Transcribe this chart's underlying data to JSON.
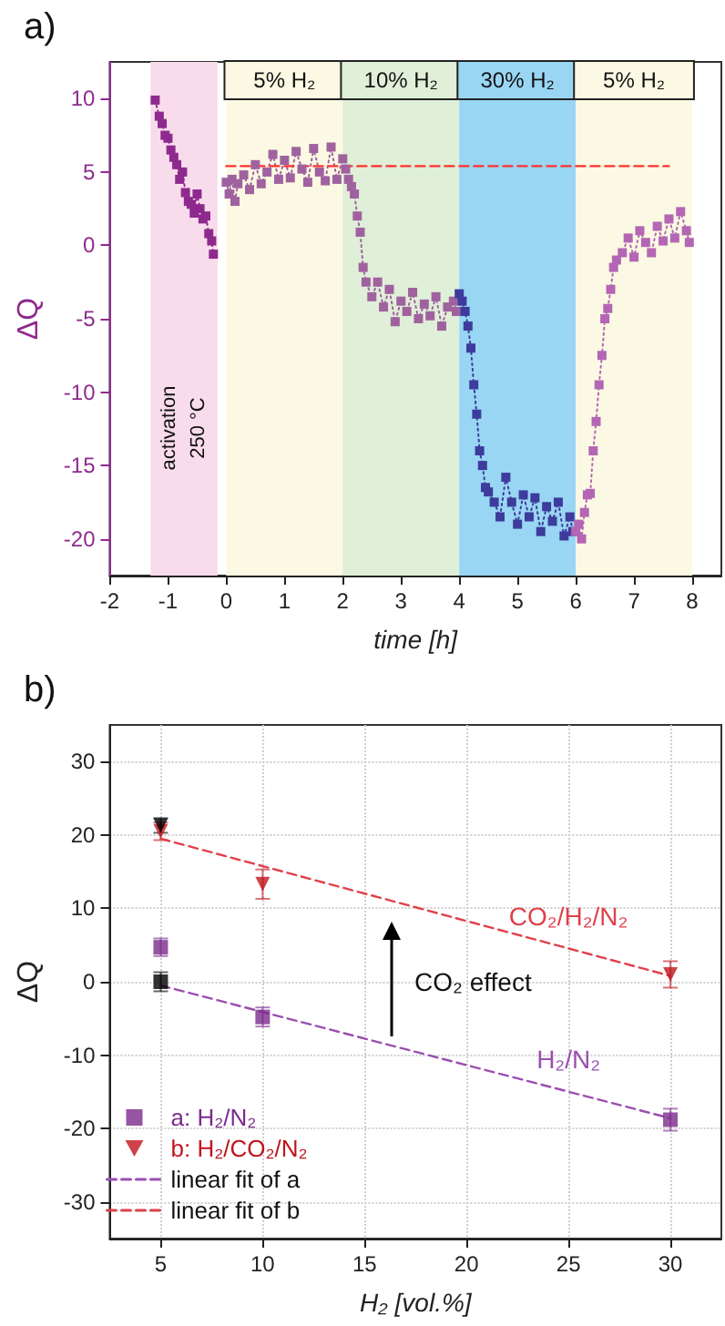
{
  "chart_data": [
    {
      "type": "line",
      "title": "a)",
      "xlabel": "time [h]",
      "ylabel": "ΔQ",
      "xlim": [
        -2,
        8.5
      ],
      "xticks": [
        -2,
        -1,
        0,
        1,
        2,
        3,
        4,
        5,
        6,
        7,
        8
      ],
      "ylim": [
        -22.5,
        12.5
      ],
      "yticks": [
        -20,
        -15,
        -10,
        -5,
        0,
        5,
        10
      ],
      "marker": "square",
      "line_style": "dotted",
      "grid": false,
      "legend": false,
      "bands": [
        {
          "axis": "x",
          "from": -1.3,
          "to": -0.15,
          "label": "activation\n250 °C",
          "color": "#f9dcec"
        },
        {
          "axis": "x",
          "from": 0,
          "to": 2,
          "label": "5% H₂",
          "color": "#fbf9e3"
        },
        {
          "axis": "x",
          "from": 2,
          "to": 4,
          "label": "10% H₂",
          "color": "#e0efd8"
        },
        {
          "axis": "x",
          "from": 4,
          "to": 6,
          "label": "30% H₂",
          "color": "#99d6f3"
        },
        {
          "axis": "x",
          "from": 6,
          "to": 8,
          "label": "5% H₂",
          "color": "#fbf9e3"
        }
      ],
      "series": [
        {
          "color": "#8e2a8e",
          "x": [
            -1.22,
            -1.15,
            -1.1,
            -1.05,
            -1.0,
            -0.95,
            -0.9,
            -0.85,
            -0.8,
            -0.75,
            -0.7,
            -0.65,
            -0.6,
            -0.55,
            -0.5,
            -0.45,
            -0.4,
            -0.35,
            -0.3,
            -0.25,
            -0.22
          ],
          "values": [
            9.9,
            8.8,
            8.3,
            7.5,
            7.3,
            6.5,
            6.0,
            5.5,
            4.5,
            5.0,
            3.6,
            3.0,
            2.8,
            2.2,
            3.5,
            2.5,
            1.8,
            2.0,
            0.8,
            0.3,
            -0.6
          ]
        },
        {
          "color": "#a0629f",
          "x": [
            0.0,
            0.05,
            0.1,
            0.15,
            0.2,
            0.3,
            0.4,
            0.5,
            0.6,
            0.7,
            0.8,
            0.9,
            1.0,
            1.1,
            1.2,
            1.3,
            1.4,
            1.5,
            1.6,
            1.7,
            1.8,
            1.9,
            2.0,
            2.05,
            2.1,
            2.15,
            2.2,
            2.25,
            2.3,
            2.35,
            2.4,
            2.5,
            2.6,
            2.7,
            2.8,
            2.9,
            3.0,
            3.1,
            3.2,
            3.3,
            3.4,
            3.5,
            3.6,
            3.7,
            3.8,
            3.9,
            3.95
          ],
          "values": [
            4.3,
            3.5,
            4.5,
            3.0,
            4.2,
            4.8,
            3.8,
            5.5,
            4.2,
            5.0,
            6.2,
            4.5,
            5.8,
            4.6,
            6.4,
            5.2,
            4.3,
            6.6,
            5.0,
            4.4,
            6.7,
            4.5,
            5.9,
            5.2,
            4.5,
            4.0,
            3.5,
            2.0,
            0.9,
            -1.5,
            -2.5,
            -3.5,
            -2.5,
            -4.2,
            -3.0,
            -5.2,
            -3.8,
            -4.5,
            -3.2,
            -5.0,
            -4.0,
            -4.8,
            -3.5,
            -5.5,
            -4.2,
            -3.8,
            -4.5
          ]
        },
        {
          "color": "#3d3b9c",
          "x": [
            4.0,
            4.05,
            4.1,
            4.15,
            4.2,
            4.25,
            4.3,
            4.35,
            4.4,
            4.45,
            4.5,
            4.6,
            4.7,
            4.8,
            4.9,
            5.0,
            5.1,
            5.2,
            5.3,
            5.4,
            5.5,
            5.6,
            5.7,
            5.8,
            5.9,
            5.95
          ],
          "values": [
            -3.3,
            -3.8,
            -4.5,
            -5.5,
            -7.0,
            -9.5,
            -11.5,
            -14.0,
            -15.0,
            -16.5,
            -16.8,
            -17.5,
            -18.5,
            -15.8,
            -17.5,
            -19.0,
            -17.0,
            -18.5,
            -17.2,
            -19.5,
            -17.8,
            -18.8,
            -17.5,
            -19.8,
            -18.5,
            -19.5
          ]
        },
        {
          "color": "#b466b4",
          "x": [
            6.0,
            6.05,
            6.1,
            6.15,
            6.2,
            6.25,
            6.3,
            6.35,
            6.4,
            6.45,
            6.5,
            6.55,
            6.6,
            6.65,
            6.7,
            6.8,
            6.9,
            7.0,
            7.1,
            7.2,
            7.3,
            7.4,
            7.5,
            7.6,
            7.7,
            7.8,
            7.9,
            7.95
          ],
          "values": [
            -19.5,
            -19.0,
            -20.0,
            -18.2,
            -17.0,
            -16.9,
            -14.0,
            -12.0,
            -9.5,
            -7.5,
            -5.0,
            -4.3,
            -3.0,
            -1.5,
            -1.0,
            -0.5,
            0.5,
            -0.8,
            1.0,
            0.2,
            -0.5,
            1.3,
            0.3,
            1.8,
            0.5,
            2.3,
            1.0,
            0.2
          ]
        },
        {
          "color": "#ff3030",
          "marker": "none",
          "line_style": "dashed",
          "x": [
            0,
            7.6
          ],
          "values": [
            5.4,
            5.4
          ]
        }
      ]
    },
    {
      "type": "scatter",
      "title": "b)",
      "xlabel": "H₂ [vol.%]",
      "ylabel": "ΔQ",
      "xlim": [
        2.5,
        32.5
      ],
      "xticks": [
        5,
        10,
        15,
        20,
        25,
        30
      ],
      "ylim": [
        -35,
        35
      ],
      "yticks": [
        -30,
        -20,
        -10,
        0,
        10,
        20,
        30
      ],
      "grid": true,
      "legend": "bottom left",
      "annotations": [
        {
          "text": "CO₂/H₂/N₂",
          "x": 25,
          "y": 4.5
        },
        "CO₂ effect",
        {
          "text": "H₂/N₂",
          "x": 25,
          "y": -15
        }
      ],
      "series": [
        {
          "name": "a: H₂/N₂",
          "color": "#7b2a8c",
          "marker": "square",
          "x": [
            5,
            10,
            30
          ],
          "values": [
            4.7,
            -4.8,
            -18.8
          ],
          "errors": [
            1.2,
            1.3,
            1.5
          ]
        },
        {
          "name": "b: H₂/CO₂/N₂",
          "color": "#c0141c",
          "marker": "triangle",
          "x": [
            5,
            10,
            30
          ],
          "values": [
            20.5,
            13.3,
            1.0
          ],
          "errors": [
            1.2,
            2.0,
            1.8
          ]
        },
        {
          "color": "#000000",
          "marker": "square",
          "x": [
            5
          ],
          "values": [
            0
          ],
          "errors": [
            1.3
          ]
        },
        {
          "color": "#000000",
          "marker": "triangle",
          "x": [
            5
          ],
          "values": [
            21.3
          ],
          "errors": [
            1.0
          ]
        },
        {
          "name": "linear fit of a",
          "type": "line",
          "color": "#9a4fb0",
          "marker": "none",
          "line_style": "dashed",
          "x": [
            5,
            30
          ],
          "values": [
            -0.5,
            -18.6
          ]
        },
        {
          "name": "linear fit of b",
          "type": "line",
          "color": "#e0404a",
          "marker": "none",
          "line_style": "dashed",
          "x": [
            5,
            30
          ],
          "values": [
            19.5,
            0.8
          ]
        }
      ]
    }
  ]
}
